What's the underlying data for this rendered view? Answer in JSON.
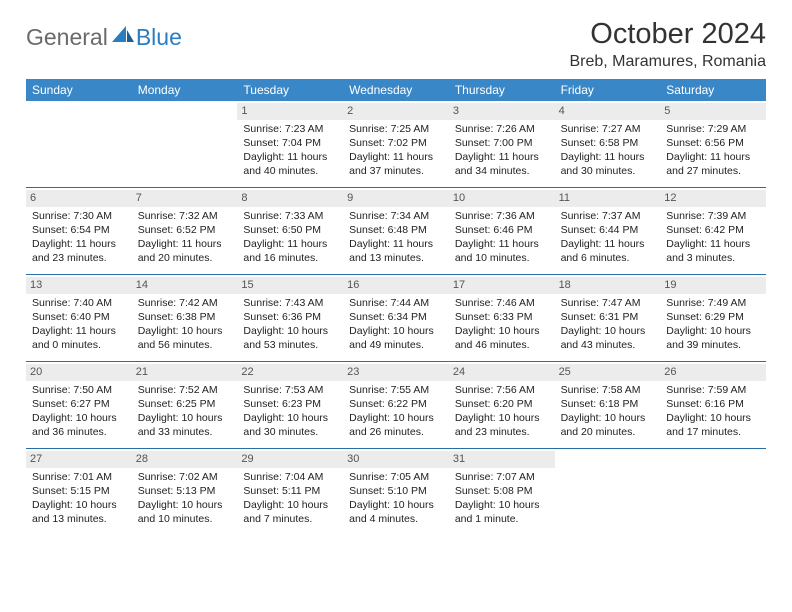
{
  "logo": {
    "general": "General",
    "blue": "Blue"
  },
  "colors": {
    "header_bg": "#3a87c8",
    "header_fg": "#ffffff",
    "daynum_bg": "#ececec",
    "row_border": "#2a6da8",
    "text": "#222222",
    "logo_gray": "#6a6a6a",
    "logo_blue": "#2a7dc0"
  },
  "title": {
    "month": "October 2024",
    "location": "Breb, Maramures, Romania"
  },
  "weekdays": [
    "Sunday",
    "Monday",
    "Tuesday",
    "Wednesday",
    "Thursday",
    "Friday",
    "Saturday"
  ],
  "first_weekday_index": 2,
  "days": [
    {
      "n": 1,
      "sr": "7:23 AM",
      "ss": "7:04 PM",
      "dl": "11 hours and 40 minutes."
    },
    {
      "n": 2,
      "sr": "7:25 AM",
      "ss": "7:02 PM",
      "dl": "11 hours and 37 minutes."
    },
    {
      "n": 3,
      "sr": "7:26 AM",
      "ss": "7:00 PM",
      "dl": "11 hours and 34 minutes."
    },
    {
      "n": 4,
      "sr": "7:27 AM",
      "ss": "6:58 PM",
      "dl": "11 hours and 30 minutes."
    },
    {
      "n": 5,
      "sr": "7:29 AM",
      "ss": "6:56 PM",
      "dl": "11 hours and 27 minutes."
    },
    {
      "n": 6,
      "sr": "7:30 AM",
      "ss": "6:54 PM",
      "dl": "11 hours and 23 minutes."
    },
    {
      "n": 7,
      "sr": "7:32 AM",
      "ss": "6:52 PM",
      "dl": "11 hours and 20 minutes."
    },
    {
      "n": 8,
      "sr": "7:33 AM",
      "ss": "6:50 PM",
      "dl": "11 hours and 16 minutes."
    },
    {
      "n": 9,
      "sr": "7:34 AM",
      "ss": "6:48 PM",
      "dl": "11 hours and 13 minutes."
    },
    {
      "n": 10,
      "sr": "7:36 AM",
      "ss": "6:46 PM",
      "dl": "11 hours and 10 minutes."
    },
    {
      "n": 11,
      "sr": "7:37 AM",
      "ss": "6:44 PM",
      "dl": "11 hours and 6 minutes."
    },
    {
      "n": 12,
      "sr": "7:39 AM",
      "ss": "6:42 PM",
      "dl": "11 hours and 3 minutes."
    },
    {
      "n": 13,
      "sr": "7:40 AM",
      "ss": "6:40 PM",
      "dl": "11 hours and 0 minutes."
    },
    {
      "n": 14,
      "sr": "7:42 AM",
      "ss": "6:38 PM",
      "dl": "10 hours and 56 minutes."
    },
    {
      "n": 15,
      "sr": "7:43 AM",
      "ss": "6:36 PM",
      "dl": "10 hours and 53 minutes."
    },
    {
      "n": 16,
      "sr": "7:44 AM",
      "ss": "6:34 PM",
      "dl": "10 hours and 49 minutes."
    },
    {
      "n": 17,
      "sr": "7:46 AM",
      "ss": "6:33 PM",
      "dl": "10 hours and 46 minutes."
    },
    {
      "n": 18,
      "sr": "7:47 AM",
      "ss": "6:31 PM",
      "dl": "10 hours and 43 minutes."
    },
    {
      "n": 19,
      "sr": "7:49 AM",
      "ss": "6:29 PM",
      "dl": "10 hours and 39 minutes."
    },
    {
      "n": 20,
      "sr": "7:50 AM",
      "ss": "6:27 PM",
      "dl": "10 hours and 36 minutes."
    },
    {
      "n": 21,
      "sr": "7:52 AM",
      "ss": "6:25 PM",
      "dl": "10 hours and 33 minutes."
    },
    {
      "n": 22,
      "sr": "7:53 AM",
      "ss": "6:23 PM",
      "dl": "10 hours and 30 minutes."
    },
    {
      "n": 23,
      "sr": "7:55 AM",
      "ss": "6:22 PM",
      "dl": "10 hours and 26 minutes."
    },
    {
      "n": 24,
      "sr": "7:56 AM",
      "ss": "6:20 PM",
      "dl": "10 hours and 23 minutes."
    },
    {
      "n": 25,
      "sr": "7:58 AM",
      "ss": "6:18 PM",
      "dl": "10 hours and 20 minutes."
    },
    {
      "n": 26,
      "sr": "7:59 AM",
      "ss": "6:16 PM",
      "dl": "10 hours and 17 minutes."
    },
    {
      "n": 27,
      "sr": "7:01 AM",
      "ss": "5:15 PM",
      "dl": "10 hours and 13 minutes."
    },
    {
      "n": 28,
      "sr": "7:02 AM",
      "ss": "5:13 PM",
      "dl": "10 hours and 10 minutes."
    },
    {
      "n": 29,
      "sr": "7:04 AM",
      "ss": "5:11 PM",
      "dl": "10 hours and 7 minutes."
    },
    {
      "n": 30,
      "sr": "7:05 AM",
      "ss": "5:10 PM",
      "dl": "10 hours and 4 minutes."
    },
    {
      "n": 31,
      "sr": "7:07 AM",
      "ss": "5:08 PM",
      "dl": "10 hours and 1 minute."
    }
  ],
  "labels": {
    "sunrise": "Sunrise:",
    "sunset": "Sunset:",
    "daylight": "Daylight:"
  }
}
